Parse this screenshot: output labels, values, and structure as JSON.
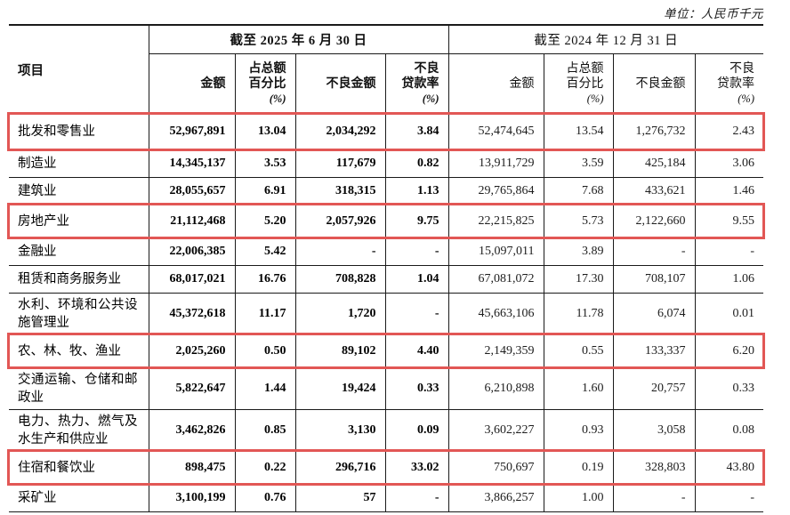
{
  "unit_label": "单位：人民币千元",
  "colors": {
    "highlight_border": "#e25755"
  },
  "table": {
    "item_header": "项目",
    "groups": [
      {
        "title": "截至 2025 年 6 月 30 日",
        "columns": [
          {
            "lines": [
              "",
              "金额",
              ""
            ]
          },
          {
            "lines": [
              "占总额",
              "百分比",
              "(%)"
            ]
          },
          {
            "lines": [
              "",
              "不良金额",
              ""
            ]
          },
          {
            "lines": [
              "不良",
              "贷款率",
              "(%)"
            ]
          }
        ]
      },
      {
        "title": "截至 2024 年 12 月 31 日",
        "columns": [
          {
            "lines": [
              "",
              "金额",
              ""
            ]
          },
          {
            "lines": [
              "占总额",
              "百分比",
              "(%)"
            ]
          },
          {
            "lines": [
              "",
              "不良金额",
              ""
            ]
          },
          {
            "lines": [
              "不良",
              "贷款率",
              "(%)"
            ]
          }
        ]
      }
    ],
    "rows": [
      {
        "label": "批发和零售业",
        "highlight": true,
        "values": [
          "52,967,891",
          "13.04",
          "2,034,292",
          "3.84",
          "52,474,645",
          "13.54",
          "1,276,732",
          "2.43"
        ]
      },
      {
        "label": "制造业",
        "highlight": false,
        "values": [
          "14,345,137",
          "3.53",
          "117,679",
          "0.82",
          "13,911,729",
          "3.59",
          "425,184",
          "3.06"
        ]
      },
      {
        "label": "建筑业",
        "highlight": false,
        "values": [
          "28,055,657",
          "6.91",
          "318,315",
          "1.13",
          "29,765,864",
          "7.68",
          "433,621",
          "1.46"
        ]
      },
      {
        "label": "房地产业",
        "highlight": true,
        "values": [
          "21,112,468",
          "5.20",
          "2,057,926",
          "9.75",
          "22,215,825",
          "5.73",
          "2,122,660",
          "9.55"
        ]
      },
      {
        "label": "金融业",
        "highlight": false,
        "values": [
          "22,006,385",
          "5.42",
          "-",
          "-",
          "15,097,011",
          "3.89",
          "-",
          "-"
        ]
      },
      {
        "label": "租赁和商务服务业",
        "highlight": false,
        "values": [
          "68,017,021",
          "16.76",
          "708,828",
          "1.04",
          "67,081,072",
          "17.30",
          "708,107",
          "1.06"
        ]
      },
      {
        "label": "水利、环境和公共设施管理业",
        "highlight": false,
        "values": [
          "45,372,618",
          "11.17",
          "1,720",
          "-",
          "45,663,106",
          "11.78",
          "6,074",
          "0.01"
        ]
      },
      {
        "label": "农、林、牧、渔业",
        "highlight": true,
        "values": [
          "2,025,260",
          "0.50",
          "89,102",
          "4.40",
          "2,149,359",
          "0.55",
          "133,337",
          "6.20"
        ]
      },
      {
        "label": "交通运输、仓储和邮政业",
        "highlight": false,
        "values": [
          "5,822,647",
          "1.44",
          "19,424",
          "0.33",
          "6,210,898",
          "1.60",
          "20,757",
          "0.33"
        ]
      },
      {
        "label": "电力、热力、燃气及水生产和供应业",
        "highlight": false,
        "values": [
          "3,462,826",
          "0.85",
          "3,130",
          "0.09",
          "3,602,227",
          "0.93",
          "3,058",
          "0.08"
        ]
      },
      {
        "label": "住宿和餐饮业",
        "highlight": true,
        "values": [
          "898,475",
          "0.22",
          "296,716",
          "33.02",
          "750,697",
          "0.19",
          "328,803",
          "43.80"
        ]
      },
      {
        "label": "采矿业",
        "highlight": false,
        "values": [
          "3,100,199",
          "0.76",
          "57",
          "-",
          "3,866,257",
          "1.00",
          "-",
          "-"
        ]
      }
    ]
  }
}
